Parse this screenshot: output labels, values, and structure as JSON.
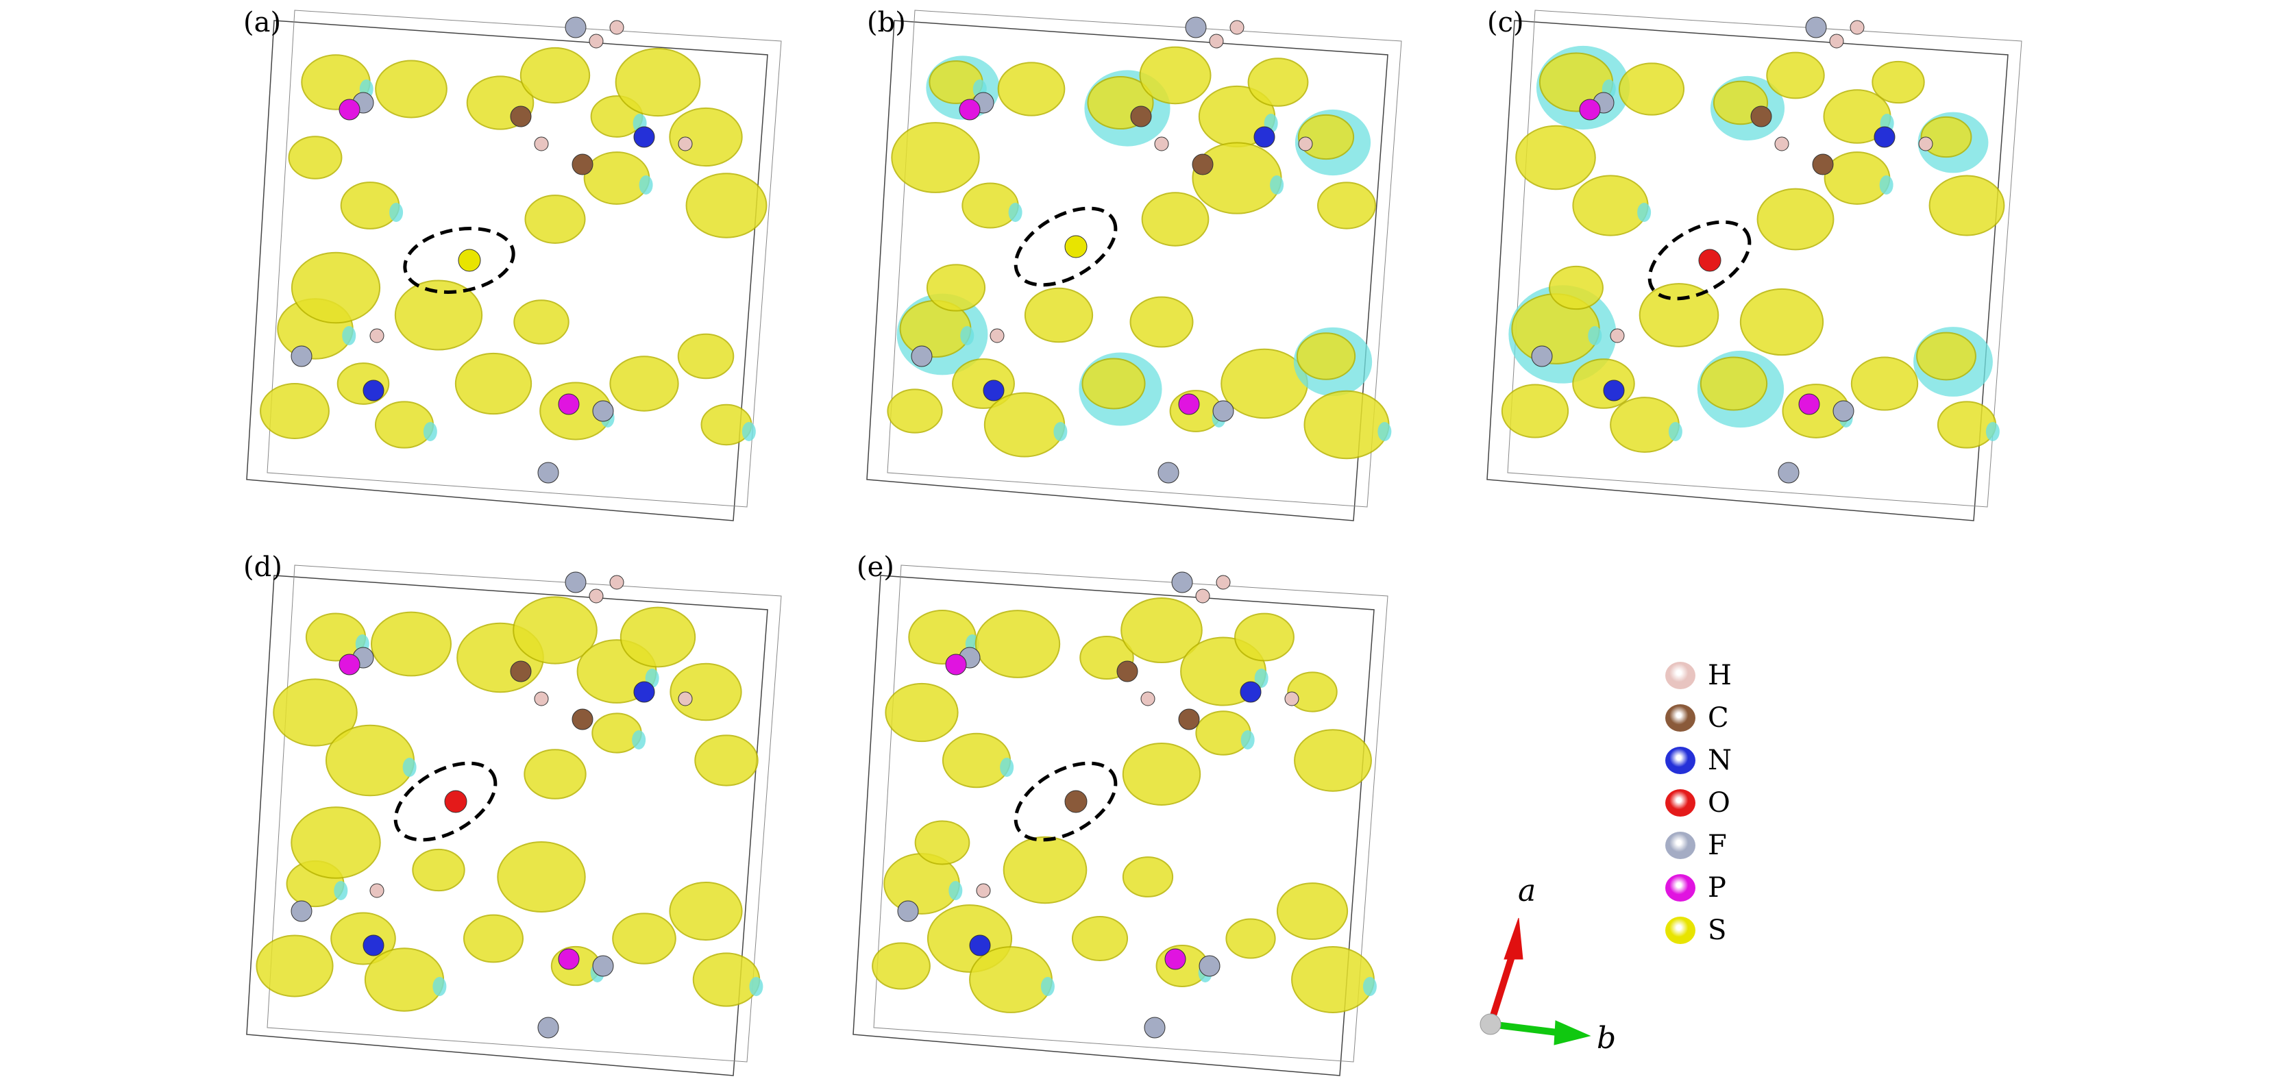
{
  "panels": [
    {
      "label": "(a)",
      "highlight": "S"
    },
    {
      "label": "(b)",
      "highlight": "S"
    },
    {
      "label": "(c)",
      "highlight": "O"
    },
    {
      "label": "(d)",
      "highlight": "O"
    },
    {
      "label": "(e)",
      "highlight": "C"
    }
  ],
  "legend": [
    {
      "symbol": "H",
      "color": "#e8c4c0"
    },
    {
      "symbol": "C",
      "color": "#8a5a3a"
    },
    {
      "symbol": "N",
      "color": "#2430d8"
    },
    {
      "symbol": "O",
      "color": "#e41a1a"
    },
    {
      "symbol": "F",
      "color": "#a4acc4"
    },
    {
      "symbol": "P",
      "color": "#e014e0"
    },
    {
      "symbol": "S",
      "color": "#e8e400"
    }
  ],
  "axes": {
    "a_label": "a",
    "b_label": "b",
    "a_color": "#e01010",
    "b_color": "#10c810"
  },
  "colors": {
    "isosurface_positive": "#e6e22a",
    "isosurface_negative": "#6ee0e0"
  }
}
